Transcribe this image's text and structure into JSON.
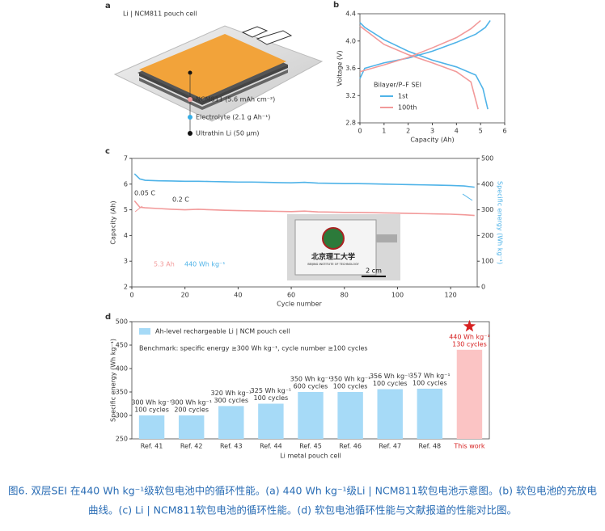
{
  "schematic": {
    "panel": "a",
    "title": "Li | NCM811 pouch cell",
    "labels": [
      "NCM811 (5.6 mAh cm⁻²)",
      "Electrolyte (2.1 g Ah⁻¹)",
      "Ultrathin Li (50 μm)"
    ]
  },
  "chart_data": [
    {
      "type": "line",
      "panel": "b",
      "xlabel": "Capacity (Ah)",
      "ylabel": "Voltage (V)",
      "xlim": [
        0,
        6
      ],
      "xticks": [
        0,
        1,
        2,
        3,
        4,
        5,
        6
      ],
      "ylim": [
        2.8,
        4.4
      ],
      "yticks": [
        2.8,
        3.2,
        3.6,
        {
          "value": 4,
          "label": "4.0"
        },
        4.4
      ],
      "legend_title": "Bilayer/P–F SEI",
      "series": [
        {
          "name": "1st",
          "color": "#4fb3e8",
          "curves": [
            {
              "x": [
                0,
                0.2,
                1,
                2,
                3,
                4,
                4.8,
                5.2,
                5.4
              ],
              "values": [
                3.45,
                3.6,
                3.68,
                3.75,
                3.85,
                3.98,
                4.1,
                4.2,
                4.3
              ]
            },
            {
              "x": [
                0,
                0.2,
                1,
                2,
                3,
                4,
                4.8,
                5.1,
                5.3
              ],
              "values": [
                4.27,
                4.2,
                4.02,
                3.85,
                3.72,
                3.62,
                3.5,
                3.3,
                3.0
              ]
            }
          ]
        },
        {
          "name": "100th",
          "color": "#f29a9a",
          "curves": [
            {
              "x": [
                0,
                1,
                2,
                3,
                4,
                4.6,
                5
              ],
              "values": [
                3.55,
                3.65,
                3.76,
                3.9,
                4.05,
                4.18,
                4.3
              ]
            },
            {
              "x": [
                0,
                1,
                2,
                3,
                4,
                4.6,
                4.9
              ],
              "values": [
                4.22,
                3.95,
                3.8,
                3.68,
                3.55,
                3.4,
                3.0
              ]
            }
          ]
        }
      ]
    },
    {
      "type": "line",
      "panel": "c",
      "xlabel": "Cycle number",
      "ylabel": "Capacity (Ah)",
      "y2label": "Specific energy (Wh kg⁻¹)",
      "xlim": [
        0,
        130
      ],
      "xticks": [
        0,
        20,
        40,
        60,
        80,
        100,
        120
      ],
      "ylim": [
        2,
        7
      ],
      "yticks": [
        2,
        3,
        4,
        5,
        6,
        7
      ],
      "y2lim": [
        0,
        500
      ],
      "y2ticks": [
        0,
        100,
        200,
        300,
        400,
        500
      ],
      "x": [
        1,
        3,
        5,
        10,
        15,
        20,
        25,
        30,
        35,
        40,
        45,
        50,
        55,
        60,
        65,
        70,
        75,
        80,
        85,
        90,
        95,
        100,
        105,
        110,
        115,
        120,
        125,
        129
      ],
      "series": [
        {
          "color": "#f29a9a",
          "values": [
            5.35,
            5.1,
            5.08,
            5.05,
            5.02,
            5.0,
            5.02,
            5.0,
            4.98,
            4.97,
            4.96,
            4.95,
            4.94,
            4.93,
            4.95,
            4.92,
            4.91,
            4.9,
            4.9,
            4.89,
            4.88,
            4.87,
            4.86,
            4.85,
            4.84,
            4.83,
            4.81,
            4.78
          ]
        },
        {
          "color": "#4fb3e8",
          "axis": "y2",
          "values": [
            440,
            420,
            415,
            413,
            412,
            411,
            411,
            410,
            409,
            408,
            408,
            407,
            406,
            405,
            407,
            404,
            403,
            402,
            402,
            401,
            400,
            399,
            398,
            397,
            396,
            395,
            393,
            388
          ]
        }
      ],
      "annotations": [
        "0.05 C",
        "0.2 C",
        "5.3 Ah",
        "440 Wh kg⁻¹"
      ],
      "photo": {
        "labels": [
          "北京理工大学",
          "BEIJING INSTITUTE OF TECHNOLOGY"
        ],
        "scale_bar": "2 cm"
      }
    },
    {
      "type": "bar",
      "panel": "d",
      "xlabel": "Li metal pouch cell",
      "ylabel": "Specific energy (Wh kg⁻¹)",
      "ylim": [
        250,
        500
      ],
      "yticks": [
        250,
        300,
        350,
        400,
        450,
        500
      ],
      "legend": "Ah-level rechargeable Li | NCM pouch cell",
      "note": "Benchmark: specific energy ≥300 Wh kg⁻¹, cycle number ≥100 cycles",
      "categories": [
        "Ref. 41",
        "Ref. 42",
        "Ref. 43",
        "Ref. 44",
        "Ref. 45",
        "Ref. 46",
        "Ref. 47",
        "Ref. 48",
        "This work"
      ],
      "values": [
        300,
        300,
        320,
        325,
        350,
        350,
        356,
        357,
        440
      ],
      "value_labels": [
        "300 Wh kg⁻¹",
        "300 Wh kg⁻¹",
        "320 Wh kg⁻¹",
        "325 Wh kg⁻¹",
        "350 Wh kg⁻¹",
        "350 Wh kg⁻¹",
        "356 Wh kg⁻¹",
        "357 Wh kg⁻¹",
        "440 Wh kg⁻¹"
      ],
      "cycle_labels": [
        "100 cycles",
        "200 cycles",
        "300 cycles",
        "100 cycles",
        "600 cycles",
        "100 cycles",
        "100 cycles",
        "100 cycles",
        "130 cycles"
      ],
      "colors": [
        "#a6daf7",
        "#a6daf7",
        "#a6daf7",
        "#a6daf7",
        "#a6daf7",
        "#a6daf7",
        "#a6daf7",
        "#a6daf7",
        "#fbc4c4"
      ],
      "highlight_color": "#d62020"
    }
  ],
  "caption": [
    "图6. 双层SEI 在440 Wh kg⁻¹级软包电池中的循环性能。(a) 440 Wh kg⁻¹级Li | NCM811软包电池示意图。(b) 软包电池的充放电",
    "曲线。(c) Li | NCM811软包电池的循环性能。(d) 软包电池循环性能与文献报道的性能对比图。"
  ]
}
